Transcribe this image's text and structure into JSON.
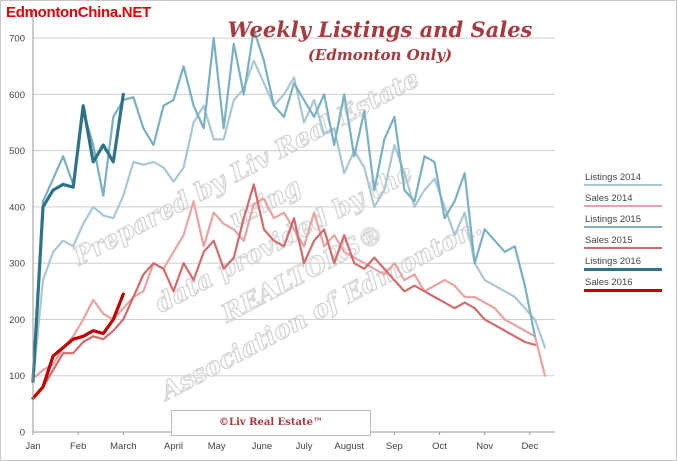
{
  "site": {
    "name": "EdmontonChina.NET"
  },
  "header": {
    "title": "Weekly Listings and Sales",
    "subtitle": "(Edmonton Only)"
  },
  "watermark": {
    "lines": [
      "Prepared by Liv Real Estate",
      "using",
      "data provided by the",
      "REALTORS®",
      "Association of Edmonton."
    ]
  },
  "credit": {
    "text": "©Liv Real Estate™"
  },
  "chart_data": {
    "type": "line",
    "title": "Weekly Listings and Sales",
    "subtitle": "(Edmonton Only)",
    "xlabel": "",
    "ylabel": "",
    "ylim": [
      0,
      750
    ],
    "yticks": [
      0,
      100,
      200,
      300,
      400,
      500,
      600,
      700
    ],
    "x_unit": "week of year",
    "xlim": [
      1,
      53
    ],
    "month_ticks": [
      {
        "label": "Jan",
        "week": 1
      },
      {
        "label": "Feb",
        "week": 5.5
      },
      {
        "label": "March",
        "week": 10
      },
      {
        "label": "April",
        "week": 15
      },
      {
        "label": "May",
        "week": 19.3
      },
      {
        "label": "June",
        "week": 23.8
      },
      {
        "label": "July",
        "week": 28
      },
      {
        "label": "August",
        "week": 32.5
      },
      {
        "label": "Sep",
        "week": 37
      },
      {
        "label": "Oct",
        "week": 41.5
      },
      {
        "label": "Nov",
        "week": 46
      },
      {
        "label": "Dec",
        "week": 50.5
      }
    ],
    "grid": true,
    "legend_position": "right",
    "series": [
      {
        "name": "Listings 2014",
        "color": "#a9c8d3",
        "width": 2.2,
        "values": [
          90,
          270,
          320,
          340,
          330,
          370,
          400,
          385,
          380,
          420,
          480,
          475,
          480,
          470,
          445,
          470,
          550,
          580,
          520,
          520,
          590,
          610,
          660,
          620,
          580,
          600,
          630,
          550,
          590,
          530,
          540,
          460,
          500,
          470,
          400,
          430,
          510,
          460,
          400,
          430,
          450,
          400,
          350,
          390,
          300,
          270,
          260,
          250,
          240,
          220,
          200,
          150
        ]
      },
      {
        "name": "Sales 2014",
        "color": "#e8a3a3",
        "width": 2.2,
        "values": [
          95,
          110,
          120,
          150,
          170,
          200,
          235,
          210,
          200,
          220,
          240,
          250,
          300,
          290,
          320,
          350,
          410,
          330,
          390,
          370,
          360,
          340,
          405,
          415,
          380,
          390,
          360,
          330,
          390,
          330,
          350,
          320,
          310,
          300,
          290,
          280,
          300,
          270,
          280,
          250,
          260,
          270,
          260,
          240,
          240,
          230,
          220,
          200,
          190,
          180,
          170,
          100
        ]
      },
      {
        "name": "Listings 2015",
        "color": "#7ab0c1",
        "width": 2.2,
        "values": [
          95,
          410,
          450,
          490,
          440,
          570,
          510,
          420,
          560,
          590,
          595,
          540,
          510,
          580,
          590,
          650,
          580,
          540,
          700,
          540,
          690,
          600,
          715,
          660,
          580,
          560,
          620,
          590,
          560,
          600,
          510,
          600,
          490,
          570,
          430,
          520,
          560,
          430,
          410,
          490,
          480,
          380,
          410,
          460,
          300,
          360,
          340,
          320,
          330,
          260,
          170
        ]
      },
      {
        "name": "Sales 2015",
        "color": "#d06b6e",
        "width": 2.2,
        "values": [
          60,
          80,
          110,
          140,
          140,
          160,
          170,
          165,
          180,
          200,
          240,
          280,
          300,
          290,
          250,
          300,
          270,
          320,
          340,
          290,
          310,
          380,
          440,
          360,
          340,
          330,
          380,
          300,
          340,
          360,
          300,
          350,
          300,
          290,
          310,
          290,
          270,
          250,
          260,
          250,
          240,
          230,
          220,
          230,
          220,
          200,
          190,
          180,
          170,
          160,
          155
        ]
      },
      {
        "name": "Listings 2016",
        "color": "#2f7389",
        "width": 3.2,
        "values": [
          90,
          400,
          430,
          440,
          435,
          580,
          480,
          510,
          480,
          600
        ]
      },
      {
        "name": "Sales 2016",
        "color": "#c00000",
        "width": 3.2,
        "values": [
          60,
          80,
          135,
          150,
          165,
          170,
          180,
          175,
          200,
          245
        ]
      }
    ]
  }
}
